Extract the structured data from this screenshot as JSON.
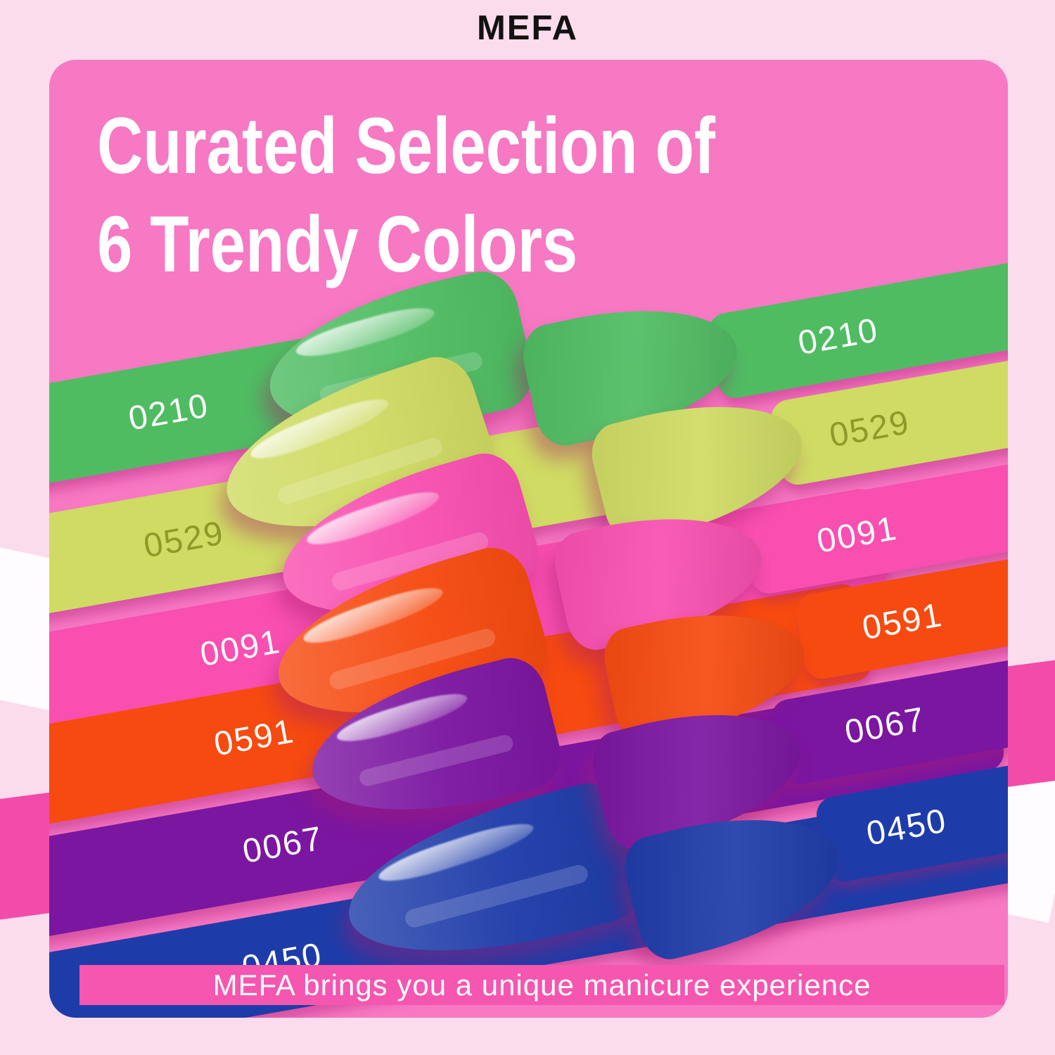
{
  "brand": "MEFA",
  "title": {
    "line1": "Curated Selection of",
    "line2": "6 Trendy Colors"
  },
  "banner_text": "MEFA brings you a unique manicure experience",
  "colors": {
    "page_background": "#fbdcec",
    "card_background": "#f778c3",
    "banner_background": "#f556b0",
    "stripe_white": "#fefcfe",
    "stripe_pink": "#f34ba9",
    "title_text": "#ffffff",
    "brand_text": "#121212"
  },
  "swatches": [
    {
      "code": "0210",
      "name": "green",
      "color": "#4fbc62",
      "label_color": "#ffffff"
    },
    {
      "code": "0529",
      "name": "yellow-green",
      "color": "#cfdb63",
      "label_color": "#8d9a28"
    },
    {
      "code": "0091",
      "name": "pink",
      "color": "#f84fb0",
      "label_color": "#ffffff"
    },
    {
      "code": "0591",
      "name": "orange",
      "color": "#f64a10",
      "label_color": "#ffffff"
    },
    {
      "code": "0067",
      "name": "purple",
      "color": "#7b16a1",
      "label_color": "#ffffff"
    },
    {
      "code": "0450",
      "name": "blue",
      "color": "#1e3ca9",
      "label_color": "#ffffff"
    }
  ],
  "nail_finishes": {
    "left_column": "glossy",
    "right_column": "matte"
  }
}
